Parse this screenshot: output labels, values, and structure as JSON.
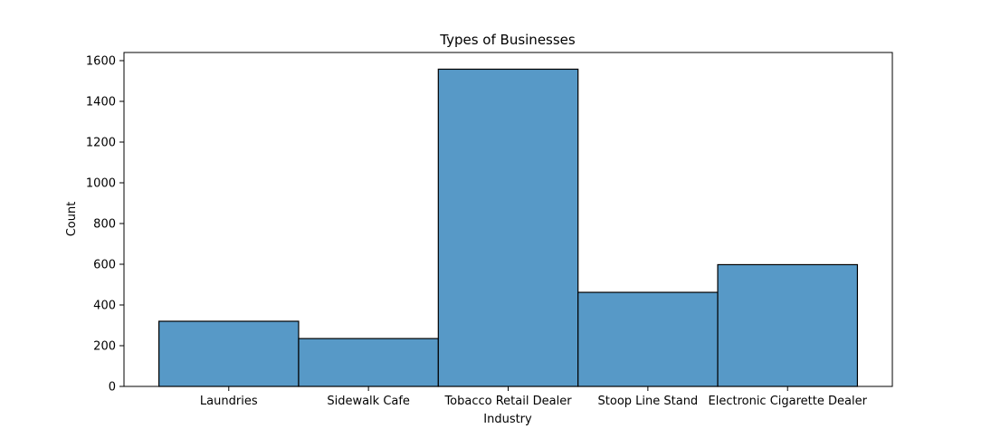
{
  "chart_data": {
    "type": "bar",
    "title": "Types of Businesses",
    "xlabel": "Industry",
    "ylabel": "Count",
    "categories": [
      "Laundries",
      "Sidewalk Cafe",
      "Tobacco Retail Dealer",
      "Stoop Line Stand",
      "Electronic Cigarette Dealer"
    ],
    "values": [
      320,
      235,
      1558,
      462,
      598
    ],
    "ylim": [
      0,
      1640
    ],
    "yticks": [
      0,
      200,
      400,
      600,
      800,
      1000,
      1200,
      1400,
      1600
    ],
    "bar_color": "#5799c7",
    "edge_color": "#000000",
    "grid": false,
    "legend": false
  }
}
